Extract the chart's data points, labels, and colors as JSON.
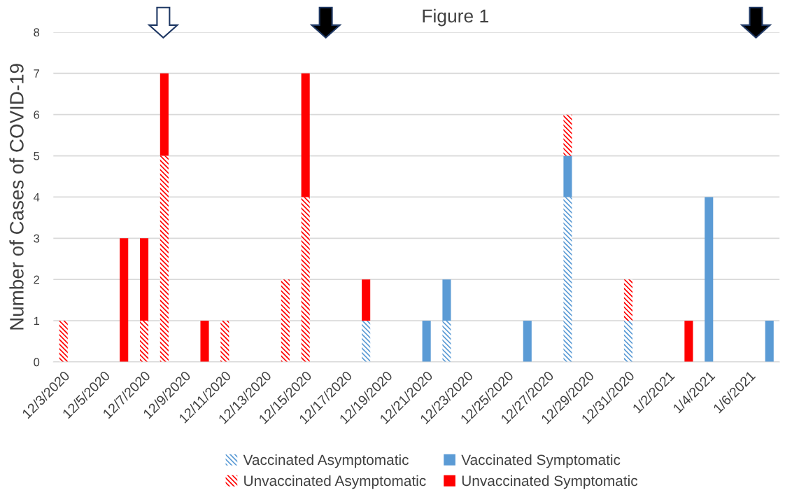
{
  "chart_data": {
    "type": "bar",
    "title": "Figure 1",
    "ylabel": "Number of Cases of COVID-19",
    "stacked": true,
    "x": [
      "2020-12-03",
      "2020-12-06",
      "2020-12-07",
      "2020-12-08",
      "2020-12-10",
      "2020-12-11",
      "2020-12-14",
      "2020-12-15",
      "2020-12-18",
      "2020-12-21",
      "2020-12-22",
      "2020-12-26",
      "2020-12-28",
      "2020-12-31",
      "2021-01-03",
      "2021-01-04",
      "2021-01-07"
    ],
    "series": [
      {
        "name": "Vaccinated Asymptomatic",
        "color": "#5b9bd5",
        "values": [
          0,
          0,
          0,
          0,
          0,
          0,
          0,
          0,
          1,
          0,
          1,
          0,
          4,
          1,
          0,
          0,
          0
        ]
      },
      {
        "name": "Vaccinated Symptomatic",
        "color": "#5b9bd5",
        "values": [
          0,
          0,
          0,
          0,
          0,
          0,
          0,
          0,
          0,
          1,
          1,
          1,
          1,
          0,
          0,
          4,
          1
        ]
      },
      {
        "name": "Unvaccinated Asymptomatic",
        "color": "#ff0000",
        "values": [
          1,
          0,
          1,
          5,
          0,
          1,
          2,
          4,
          0,
          0,
          0,
          0,
          1,
          1,
          0,
          0,
          0
        ]
      },
      {
        "name": "Unvaccinated Symptomatic",
        "color": "#ff0000",
        "values": [
          0,
          3,
          2,
          2,
          1,
          0,
          0,
          3,
          1,
          0,
          0,
          0,
          0,
          0,
          1,
          0,
          0
        ]
      }
    ],
    "xlim": [
      "2020-12-02T12:00",
      "2021-01-07T12:00"
    ],
    "xticks": [
      {
        "value": "2020-12-03",
        "label": "12/3/2020"
      },
      {
        "value": "2020-12-05",
        "label": "12/5/2020"
      },
      {
        "value": "2020-12-07",
        "label": "12/7/2020"
      },
      {
        "value": "2020-12-09",
        "label": "12/9/2020"
      },
      {
        "value": "2020-12-11",
        "label": "12/11/2020"
      },
      {
        "value": "2020-12-13",
        "label": "12/13/2020"
      },
      {
        "value": "2020-12-15",
        "label": "12/15/2020"
      },
      {
        "value": "2020-12-17",
        "label": "12/17/2020"
      },
      {
        "value": "2020-12-19",
        "label": "12/19/2020"
      },
      {
        "value": "2020-12-21",
        "label": "12/21/2020"
      },
      {
        "value": "2020-12-23",
        "label": "12/23/2020"
      },
      {
        "value": "2020-12-25",
        "label": "12/25/2020"
      },
      {
        "value": "2020-12-27",
        "label": "12/27/2020"
      },
      {
        "value": "2020-12-29",
        "label": "12/29/2020"
      },
      {
        "value": "2020-12-31",
        "label": "12/31/2020"
      },
      {
        "value": "2021-01-02",
        "label": "1/2/2021"
      },
      {
        "value": "2021-01-04",
        "label": "1/4/2021"
      },
      {
        "value": "2021-01-06",
        "label": "1/6/2021"
      }
    ],
    "ylim": [
      0,
      8
    ],
    "yticks": [
      0,
      1,
      2,
      3,
      4,
      5,
      6,
      7,
      8
    ],
    "grid": "y",
    "legend": "bottom"
  }
}
